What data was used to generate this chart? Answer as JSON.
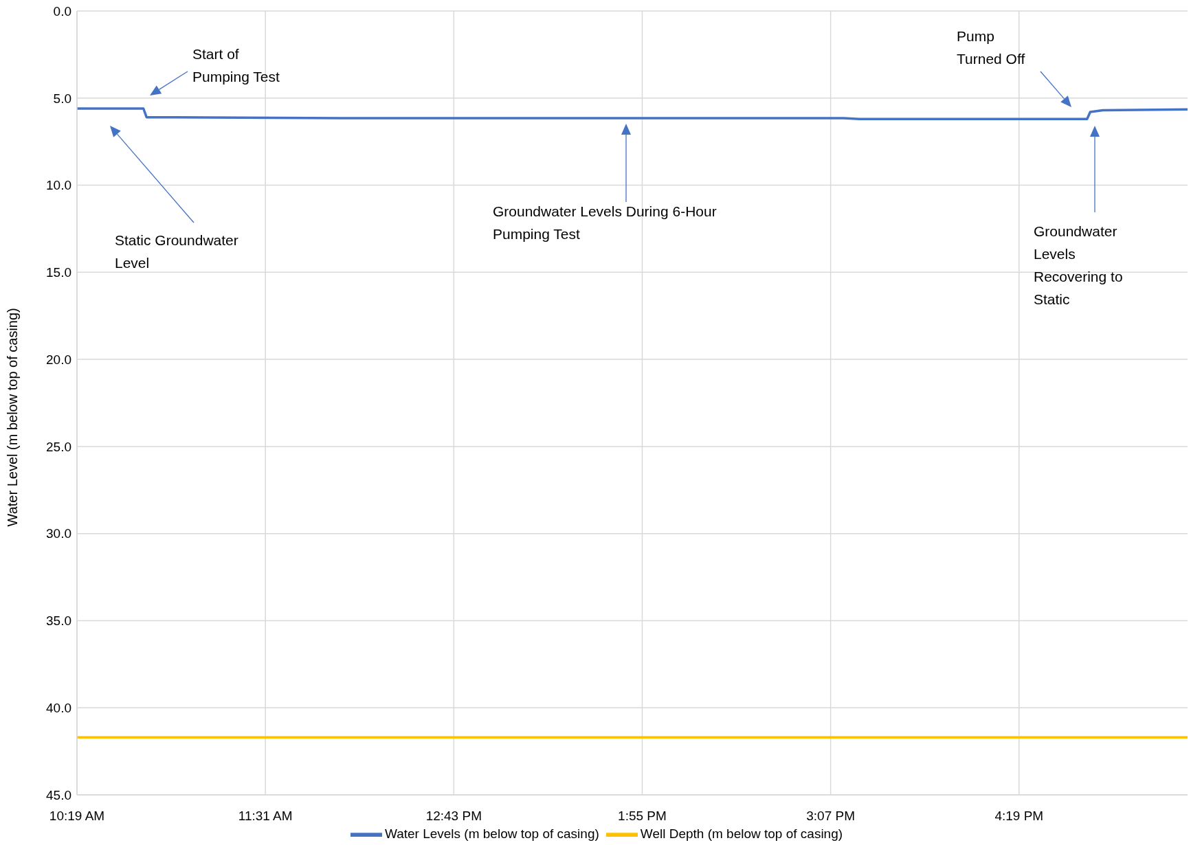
{
  "chart_data": {
    "type": "line",
    "ylabel": "Water Level (m below top of casing)",
    "xlim": [
      10.3167,
      17.39
    ],
    "xticks": [
      {
        "value": 10.3167,
        "label": "10:19 AM"
      },
      {
        "value": 11.5167,
        "label": "11:31 AM"
      },
      {
        "value": 12.7167,
        "label": "12:43 PM"
      },
      {
        "value": 13.9167,
        "label": "1:55 PM"
      },
      {
        "value": 15.1167,
        "label": "3:07 PM"
      },
      {
        "value": 16.3167,
        "label": "4:19 PM"
      }
    ],
    "ylim": [
      45,
      0
    ],
    "yticks": [
      {
        "value": 0,
        "label": "0.0"
      },
      {
        "value": 5,
        "label": "5.0"
      },
      {
        "value": 10,
        "label": "10.0"
      },
      {
        "value": 15,
        "label": "15.0"
      },
      {
        "value": 20,
        "label": "20.0"
      },
      {
        "value": 25,
        "label": "25.0"
      },
      {
        "value": 30,
        "label": "30.0"
      },
      {
        "value": 35,
        "label": "35.0"
      },
      {
        "value": 40,
        "label": "40.0"
      },
      {
        "value": 45,
        "label": "45.0"
      }
    ],
    "grid": true,
    "legend": "bottom",
    "marker": "none",
    "line_style": "solid",
    "series": [
      {
        "name": "Water Levels (m below top of casing)",
        "color": "#4472c4",
        "x": [
          10.3167,
          10.74,
          10.76,
          12.0,
          14.0,
          15.2,
          15.3,
          16.75,
          16.77,
          16.85,
          17.39
        ],
        "values": [
          5.6,
          5.6,
          6.1,
          6.15,
          6.15,
          6.15,
          6.2,
          6.2,
          5.8,
          5.7,
          5.65
        ]
      },
      {
        "name": "Well Depth (m below top of casing)",
        "color": "#ffc000",
        "x": [
          10.3167,
          17.39
        ],
        "values": [
          41.7,
          41.7
        ]
      }
    ],
    "annotations": [
      "Start of Pumping Test",
      "Static Groundwater Level",
      "Groundwater Levels During 6-Hour Pumping Test",
      "Pump Turned Off",
      "Groundwater Levels Recovering to Static"
    ]
  }
}
